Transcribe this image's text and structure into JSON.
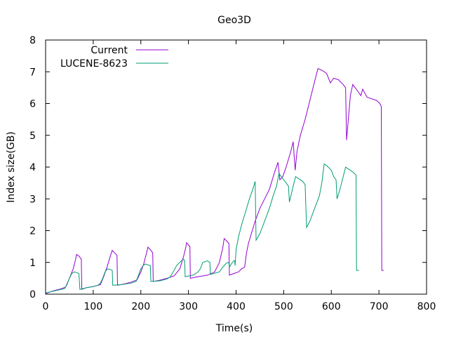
{
  "chart_data": {
    "type": "line",
    "title": "Geo3D",
    "xlabel": "Time(s)",
    "ylabel": "Index size(GB)",
    "xlim": [
      0,
      800
    ],
    "ylim": [
      0,
      8
    ],
    "xticks": [
      0,
      100,
      200,
      300,
      400,
      500,
      600,
      700,
      800
    ],
    "yticks": [
      0,
      1,
      2,
      3,
      4,
      5,
      6,
      7,
      8
    ],
    "grid": false,
    "legend_position": "top-left",
    "series": [
      {
        "name": "Current",
        "color": "#9400d3",
        "points": [
          [
            0,
            0.02
          ],
          [
            15,
            0.1
          ],
          [
            30,
            0.16
          ],
          [
            42,
            0.22
          ],
          [
            50,
            0.5
          ],
          [
            58,
            0.8
          ],
          [
            63,
            1.1
          ],
          [
            65,
            1.25
          ],
          [
            70,
            1.2
          ],
          [
            75,
            1.1
          ],
          [
            76,
            0.15
          ],
          [
            85,
            0.2
          ],
          [
            100,
            0.24
          ],
          [
            115,
            0.3
          ],
          [
            122,
            0.55
          ],
          [
            130,
            0.9
          ],
          [
            136,
            1.2
          ],
          [
            140,
            1.38
          ],
          [
            145,
            1.3
          ],
          [
            150,
            1.22
          ],
          [
            151,
            0.28
          ],
          [
            165,
            0.32
          ],
          [
            180,
            0.38
          ],
          [
            192,
            0.45
          ],
          [
            200,
            0.7
          ],
          [
            206,
            0.95
          ],
          [
            212,
            1.3
          ],
          [
            215,
            1.48
          ],
          [
            220,
            1.4
          ],
          [
            225,
            1.3
          ],
          [
            226,
            0.4
          ],
          [
            240,
            0.44
          ],
          [
            255,
            0.5
          ],
          [
            270,
            0.58
          ],
          [
            282,
            0.8
          ],
          [
            290,
            1.2
          ],
          [
            294,
            1.45
          ],
          [
            296,
            1.62
          ],
          [
            300,
            1.55
          ],
          [
            303,
            1.5
          ],
          [
            304,
            0.5
          ],
          [
            320,
            0.55
          ],
          [
            340,
            0.6
          ],
          [
            355,
            0.7
          ],
          [
            365,
            1.0
          ],
          [
            372,
            1.45
          ],
          [
            375,
            1.75
          ],
          [
            380,
            1.68
          ],
          [
            385,
            1.6
          ],
          [
            386,
            0.6
          ],
          [
            395,
            0.65
          ],
          [
            405,
            0.7
          ],
          [
            412,
            0.8
          ],
          [
            418,
            0.85
          ],
          [
            422,
            1.3
          ],
          [
            426,
            1.6
          ],
          [
            432,
            1.9
          ],
          [
            440,
            2.3
          ],
          [
            450,
            2.7
          ],
          [
            460,
            3.0
          ],
          [
            470,
            3.3
          ],
          [
            480,
            3.8
          ],
          [
            488,
            4.15
          ],
          [
            492,
            3.6
          ],
          [
            498,
            3.7
          ],
          [
            505,
            4.0
          ],
          [
            515,
            4.5
          ],
          [
            520,
            4.8
          ],
          [
            524,
            3.9
          ],
          [
            528,
            4.5
          ],
          [
            535,
            5.0
          ],
          [
            545,
            5.5
          ],
          [
            555,
            6.1
          ],
          [
            565,
            6.7
          ],
          [
            572,
            7.1
          ],
          [
            580,
            7.05
          ],
          [
            590,
            6.95
          ],
          [
            598,
            6.65
          ],
          [
            605,
            6.8
          ],
          [
            615,
            6.75
          ],
          [
            625,
            6.6
          ],
          [
            630,
            6.5
          ],
          [
            632,
            4.85
          ],
          [
            640,
            6.25
          ],
          [
            645,
            6.6
          ],
          [
            655,
            6.4
          ],
          [
            662,
            6.25
          ],
          [
            666,
            6.45
          ],
          [
            675,
            6.2
          ],
          [
            685,
            6.15
          ],
          [
            695,
            6.1
          ],
          [
            702,
            6.0
          ],
          [
            705,
            5.9
          ],
          [
            706,
            0.75
          ],
          [
            710,
            0.75
          ]
        ]
      },
      {
        "name": "LUCENE-8623",
        "color": "#009e73",
        "points": [
          [
            0,
            0.04
          ],
          [
            15,
            0.09
          ],
          [
            30,
            0.14
          ],
          [
            40,
            0.18
          ],
          [
            45,
            0.3
          ],
          [
            50,
            0.5
          ],
          [
            55,
            0.65
          ],
          [
            60,
            0.7
          ],
          [
            65,
            0.68
          ],
          [
            70,
            0.65
          ],
          [
            72,
            0.15
          ],
          [
            85,
            0.2
          ],
          [
            100,
            0.24
          ],
          [
            110,
            0.28
          ],
          [
            115,
            0.35
          ],
          [
            120,
            0.5
          ],
          [
            125,
            0.7
          ],
          [
            130,
            0.8
          ],
          [
            135,
            0.78
          ],
          [
            140,
            0.75
          ],
          [
            141,
            0.28
          ],
          [
            160,
            0.3
          ],
          [
            180,
            0.35
          ],
          [
            190,
            0.4
          ],
          [
            195,
            0.6
          ],
          [
            200,
            0.8
          ],
          [
            205,
            0.9
          ],
          [
            210,
            0.95
          ],
          [
            215,
            0.92
          ],
          [
            220,
            0.9
          ],
          [
            221,
            0.4
          ],
          [
            240,
            0.42
          ],
          [
            255,
            0.48
          ],
          [
            262,
            0.55
          ],
          [
            268,
            0.7
          ],
          [
            275,
            0.9
          ],
          [
            285,
            1.05
          ],
          [
            290,
            1.1
          ],
          [
            292,
            1.05
          ],
          [
            293,
            0.55
          ],
          [
            310,
            0.6
          ],
          [
            320,
            0.7
          ],
          [
            325,
            0.8
          ],
          [
            330,
            1.0
          ],
          [
            340,
            1.05
          ],
          [
            345,
            1.0
          ],
          [
            346,
            0.62
          ],
          [
            365,
            0.7
          ],
          [
            372,
            0.85
          ],
          [
            378,
            0.95
          ],
          [
            382,
            1.0
          ],
          [
            385,
            0.98
          ],
          [
            386,
            0.85
          ],
          [
            390,
            0.95
          ],
          [
            395,
            1.05
          ],
          [
            397,
            1.05
          ],
          [
            398,
            0.9
          ],
          [
            400,
            1.4
          ],
          [
            405,
            1.8
          ],
          [
            412,
            2.2
          ],
          [
            420,
            2.6
          ],
          [
            428,
            3.0
          ],
          [
            435,
            3.3
          ],
          [
            440,
            3.55
          ],
          [
            442,
            1.7
          ],
          [
            450,
            1.9
          ],
          [
            460,
            2.3
          ],
          [
            470,
            2.7
          ],
          [
            478,
            3.1
          ],
          [
            485,
            3.4
          ],
          [
            490,
            3.8
          ],
          [
            495,
            3.7
          ],
          [
            500,
            3.6
          ],
          [
            505,
            3.5
          ],
          [
            510,
            3.4
          ],
          [
            512,
            2.9
          ],
          [
            520,
            3.4
          ],
          [
            525,
            3.7
          ],
          [
            530,
            3.65
          ],
          [
            540,
            3.55
          ],
          [
            545,
            3.45
          ],
          [
            548,
            2.1
          ],
          [
            555,
            2.3
          ],
          [
            565,
            2.7
          ],
          [
            575,
            3.1
          ],
          [
            580,
            3.5
          ],
          [
            585,
            4.1
          ],
          [
            590,
            4.05
          ],
          [
            600,
            3.9
          ],
          [
            605,
            3.7
          ],
          [
            610,
            3.6
          ],
          [
            612,
            3.0
          ],
          [
            618,
            3.3
          ],
          [
            625,
            3.7
          ],
          [
            630,
            4.0
          ],
          [
            635,
            3.95
          ],
          [
            645,
            3.85
          ],
          [
            652,
            3.75
          ],
          [
            653,
            0.75
          ],
          [
            658,
            0.75
          ]
        ]
      }
    ]
  }
}
